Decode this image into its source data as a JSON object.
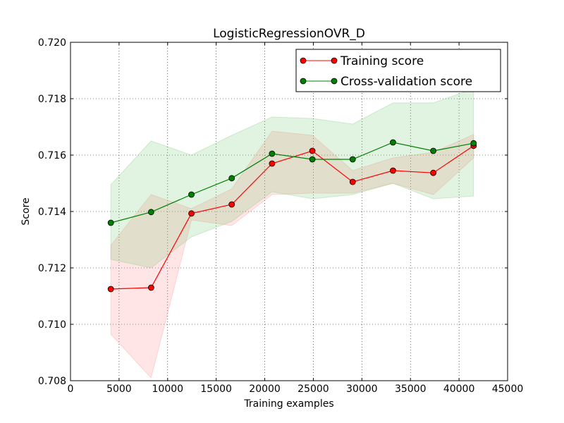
{
  "chart_data": {
    "type": "line",
    "title": "LogisticRegressionOVR_D",
    "xlabel": "Training examples",
    "ylabel": "Score",
    "xlim": [
      0,
      45000
    ],
    "ylim": [
      0.708,
      0.72
    ],
    "xticks": [
      0,
      5000,
      10000,
      15000,
      20000,
      25000,
      30000,
      35000,
      40000,
      45000
    ],
    "yticks": [
      0.708,
      0.71,
      0.712,
      0.714,
      0.716,
      0.718,
      0.72
    ],
    "xtick_labels": [
      "0",
      "5000",
      "10000",
      "15000",
      "20000",
      "25000",
      "30000",
      "35000",
      "40000",
      "45000"
    ],
    "ytick_labels": [
      "0.708",
      "0.710",
      "0.712",
      "0.714",
      "0.716",
      "0.718",
      "0.720"
    ],
    "grid": true,
    "legend_position": "top-right",
    "x": [
      4150,
      8300,
      12450,
      16600,
      20750,
      24900,
      29050,
      33200,
      37350,
      41500
    ],
    "series": [
      {
        "name": "Training score",
        "color": "#ff0000",
        "band_color": "#ff8a8a",
        "values": [
          0.71125,
          0.7113,
          0.71393,
          0.71425,
          0.7157,
          0.71615,
          0.71505,
          0.71545,
          0.71537,
          0.71633
        ],
        "upper": [
          0.7128,
          0.7146,
          0.7141,
          0.7148,
          0.71685,
          0.7167,
          0.71545,
          0.7159,
          0.7161,
          0.71673
        ],
        "lower": [
          0.70965,
          0.7081,
          0.7137,
          0.7135,
          0.7146,
          0.71465,
          0.71465,
          0.715,
          0.7146,
          0.7159
        ]
      },
      {
        "name": "Cross-validation score",
        "color": "#008000",
        "band_color": "#76c776",
        "values": [
          0.7136,
          0.71398,
          0.7146,
          0.71518,
          0.71605,
          0.71585,
          0.71585,
          0.71645,
          0.71615,
          0.71642
        ],
        "upper": [
          0.71495,
          0.7165,
          0.716,
          0.7167,
          0.71735,
          0.7173,
          0.7171,
          0.71785,
          0.71785,
          0.71835
        ],
        "lower": [
          0.7123,
          0.712,
          0.7131,
          0.71365,
          0.7147,
          0.71445,
          0.7146,
          0.715,
          0.71445,
          0.71455
        ]
      }
    ]
  }
}
